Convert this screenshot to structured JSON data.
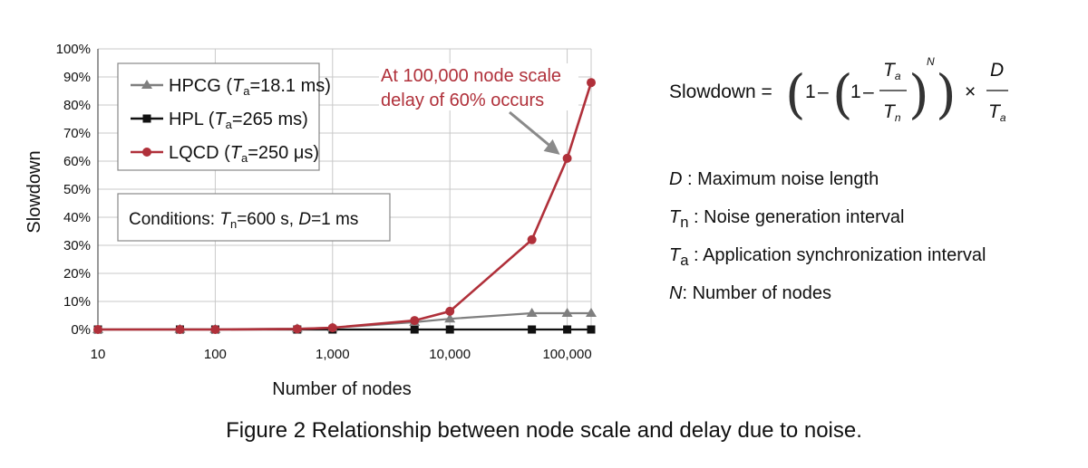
{
  "chart_data": {
    "type": "line",
    "x_scale": "log",
    "xlim": [
      10,
      160000
    ],
    "ylim": [
      0,
      100
    ],
    "grid": true,
    "xlabel": "Number of nodes",
    "ylabel": "Slowdown",
    "x_ticks": [
      10,
      100,
      1000,
      10000,
      100000
    ],
    "x_tick_labels": [
      "10",
      "100",
      "1,000",
      "10,000",
      "100,000"
    ],
    "y_ticks": [
      0,
      10,
      20,
      30,
      40,
      50,
      60,
      70,
      80,
      90,
      100
    ],
    "y_tick_labels": [
      "0%",
      "10%",
      "20%",
      "30%",
      "40%",
      "50%",
      "60%",
      "70%",
      "80%",
      "90%",
      "100%"
    ],
    "legend_position": "top-left",
    "series": [
      {
        "name": "HPCG (Ta=18.1 ms)",
        "name_base": "HPCG (",
        "name_sym": "T",
        "name_sub": "a",
        "name_rest": "=18.1 ms)",
        "color": "#7f7f7f",
        "marker": "triangle",
        "x": [
          10,
          50,
          100,
          500,
          1000,
          5000,
          10000,
          50000,
          100000,
          160000
        ],
        "values": [
          0,
          0.1,
          0.1,
          0.3,
          0.6,
          2.6,
          3.8,
          5.8,
          5.8,
          5.8
        ]
      },
      {
        "name": "HPL (Ta=265 ms)",
        "name_base": "HPL (",
        "name_sym": "T",
        "name_sub": "a",
        "name_rest": "=265 ms)",
        "color": "#111111",
        "marker": "square",
        "x": [
          10,
          50,
          100,
          500,
          1000,
          5000,
          10000,
          50000,
          100000,
          160000
        ],
        "values": [
          0,
          0,
          0,
          0,
          0,
          0,
          0,
          0,
          0,
          0
        ]
      },
      {
        "name": "LQCD (Ta=250 μs)",
        "name_base": "LQCD (",
        "name_sym": "T",
        "name_sub": "a",
        "name_rest": "=250 μs)",
        "color": "#b0303a",
        "marker": "circle",
        "x": [
          10,
          50,
          100,
          500,
          1000,
          5000,
          10000,
          50000,
          100000,
          160000
        ],
        "values": [
          0,
          0,
          0,
          0.2,
          0.6,
          3.2,
          6.5,
          32,
          61,
          88
        ]
      }
    ],
    "annotation": {
      "line1": "At 100,000 node scale",
      "line2": "delay of 60% occurs",
      "arrow_target_x": 100000,
      "arrow_target_y": 61
    },
    "conditions": {
      "prefix": "Conditions: ",
      "sym1": "T",
      "sub1": "n",
      "mid": "=600 s, ",
      "sym2": "D",
      "rest": "=1 ms"
    }
  },
  "formula": {
    "lhs": "Slowdown =",
    "one": "1",
    "minus": "–",
    "times": "×",
    "t": "T",
    "sub_a": "a",
    "sub_n": "n",
    "n": "N",
    "d": "D"
  },
  "definitions": [
    {
      "sym": "D",
      "sub": "",
      "sep": " : ",
      "text": "Maximum noise length"
    },
    {
      "sym": "T",
      "sub": "n",
      "sep": " : ",
      "text": "Noise generation interval"
    },
    {
      "sym": "T",
      "sub": "a",
      "sep": " : ",
      "text": "Application synchronization interval"
    },
    {
      "sym": "N",
      "sub": "",
      "sep": ": ",
      "text": "Number of nodes"
    }
  ],
  "caption": "Figure 2 Relationship between node scale and delay due to noise."
}
